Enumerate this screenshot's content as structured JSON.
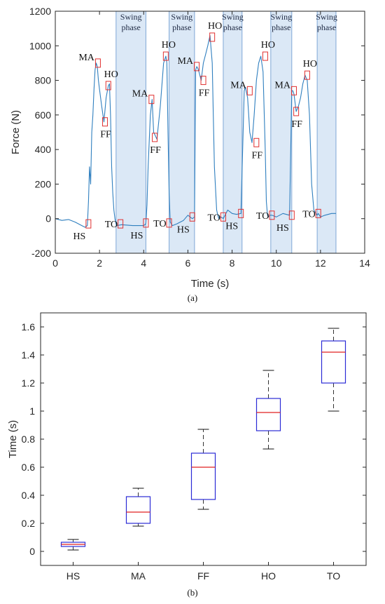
{
  "chart_data": [
    {
      "type": "line",
      "caption": "(a)",
      "xlabel": "Time (s)",
      "ylabel": "Force (N)",
      "xlim": [
        0,
        14
      ],
      "ylim": [
        -200,
        1200
      ],
      "xticks": [
        0,
        2,
        4,
        6,
        8,
        10,
        12,
        14
      ],
      "yticks": [
        -200,
        0,
        200,
        400,
        600,
        800,
        1000,
        1200
      ],
      "line_color": "#2f7fbf",
      "series": [
        {
          "x": [
            0,
            0.3,
            0.6,
            0.9,
            1.2,
            1.35,
            1.45,
            1.5,
            1.55,
            1.6,
            1.65,
            1.7,
            1.75,
            1.8,
            1.85,
            1.9,
            1.95,
            2.0,
            2.1,
            2.2,
            2.3,
            2.4,
            2.45,
            2.5,
            2.55,
            2.6,
            2.65,
            2.7,
            2.75,
            2.8,
            3.0,
            3.5,
            4.0,
            4.1,
            4.15,
            4.2,
            4.3,
            4.38,
            4.45,
            4.6,
            4.75,
            4.9,
            5.0,
            5.05,
            5.1,
            5.15,
            5.2,
            5.3,
            5.5,
            5.8,
            6.0,
            6.2,
            6.3,
            6.35,
            6.4,
            6.45,
            6.5,
            6.6,
            6.7,
            6.8,
            6.9,
            7.0,
            7.1,
            7.15,
            7.2,
            7.3,
            7.35,
            7.4,
            7.45,
            7.5,
            7.6,
            7.8,
            8.0,
            8.2,
            8.4,
            8.55,
            8.6,
            8.7,
            8.75,
            8.8,
            8.9,
            9.0,
            9.1,
            9.2,
            9.3,
            9.4,
            9.5,
            9.55,
            9.6,
            9.65,
            9.7,
            9.8,
            10.0,
            10.3,
            10.6,
            10.7,
            10.75,
            10.8,
            10.9,
            11.0,
            11.1,
            11.2,
            11.3,
            11.4,
            11.5,
            11.6,
            11.7,
            11.8,
            11.85,
            11.9,
            12.0,
            12.2,
            12.5,
            12.7
          ],
          "y": [
            0,
            -10,
            -5,
            -20,
            -40,
            -50,
            -40,
            100,
            300,
            200,
            500,
            600,
            750,
            860,
            900,
            880,
            800,
            750,
            650,
            560,
            700,
            770,
            780,
            600,
            300,
            150,
            50,
            0,
            -30,
            -40,
            -35,
            -40,
            -40,
            -30,
            80,
            300,
            600,
            690,
            500,
            460,
            650,
            900,
            940,
            900,
            500,
            150,
            -20,
            -40,
            -30,
            -10,
            20,
            0,
            10,
            860,
            880,
            870,
            850,
            800,
            900,
            950,
            1000,
            1060,
            900,
            600,
            300,
            50,
            20,
            0,
            10,
            10,
            0,
            50,
            30,
            25,
            30,
            740,
            760,
            700,
            600,
            500,
            440,
            600,
            800,
            900,
            940,
            850,
            400,
            100,
            20,
            10,
            20,
            20,
            10,
            30,
            20,
            740,
            740,
            720,
            620,
            650,
            700,
            780,
            830,
            800,
            600,
            200,
            50,
            30,
            20,
            30,
            10,
            20,
            30,
            30
          ]
        }
      ],
      "swing_phases": [
        [
          2.75,
          4.1
        ],
        [
          5.15,
          6.3
        ],
        [
          7.6,
          8.45
        ],
        [
          9.75,
          10.7
        ],
        [
          11.85,
          12.7
        ]
      ],
      "swing_label": "Swing phase",
      "annotations": [
        {
          "label": "MA",
          "x": 1.93,
          "y": 900
        },
        {
          "label": "HO",
          "x": 2.4,
          "y": 770
        },
        {
          "label": "FF",
          "x": 2.25,
          "y": 560
        },
        {
          "label": "HS",
          "x": 1.5,
          "y": -30
        },
        {
          "label": "TO",
          "x": 2.95,
          "y": -30
        },
        {
          "label": "MA",
          "x": 4.35,
          "y": 690
        },
        {
          "label": "FF",
          "x": 4.5,
          "y": 470
        },
        {
          "label": "HO",
          "x": 5.0,
          "y": 940
        },
        {
          "label": "HS",
          "x": 4.1,
          "y": -25
        },
        {
          "label": "TO",
          "x": 5.15,
          "y": -25
        },
        {
          "label": "MA",
          "x": 6.4,
          "y": 880
        },
        {
          "label": "FF",
          "x": 6.7,
          "y": 800
        },
        {
          "label": "HO",
          "x": 7.1,
          "y": 1050
        },
        {
          "label": "HS",
          "x": 6.2,
          "y": 10
        },
        {
          "label": "TO",
          "x": 7.6,
          "y": 10
        },
        {
          "label": "MA",
          "x": 8.8,
          "y": 740
        },
        {
          "label": "FF",
          "x": 9.1,
          "y": 440
        },
        {
          "label": "HO",
          "x": 9.5,
          "y": 940
        },
        {
          "label": "HS",
          "x": 8.4,
          "y": 30
        },
        {
          "label": "TO",
          "x": 9.8,
          "y": 20
        },
        {
          "label": "MA",
          "x": 10.8,
          "y": 740
        },
        {
          "label": "FF",
          "x": 10.9,
          "y": 620
        },
        {
          "label": "HO",
          "x": 11.4,
          "y": 830
        },
        {
          "label": "HS",
          "x": 10.7,
          "y": 20
        },
        {
          "label": "TO",
          "x": 11.9,
          "y": 30
        }
      ]
    },
    {
      "type": "box",
      "caption": "(b)",
      "ylabel": "Time (s)",
      "ylim": [
        -0.1,
        1.7
      ],
      "yticks": [
        0,
        0.2,
        0.4,
        0.6,
        0.8,
        1,
        1.2,
        1.4,
        1.6
      ],
      "ytick_labels": [
        "0",
        "0.2",
        "0.4",
        "0.6",
        "0.8",
        "1",
        "1.2",
        "1.4",
        "1.6"
      ],
      "categories": [
        "HS",
        "MA",
        "FF",
        "HO",
        "TO"
      ],
      "box_color": "#2b2bd6",
      "median_color": "#e02020",
      "boxes": [
        {
          "min": 0.01,
          "q1": 0.035,
          "median": 0.05,
          "q3": 0.065,
          "max": 0.085
        },
        {
          "min": 0.18,
          "q1": 0.2,
          "median": 0.28,
          "q3": 0.39,
          "max": 0.45
        },
        {
          "min": 0.3,
          "q1": 0.37,
          "median": 0.6,
          "q3": 0.7,
          "max": 0.87
        },
        {
          "min": 0.73,
          "q1": 0.86,
          "median": 0.99,
          "q3": 1.09,
          "max": 1.29
        },
        {
          "min": 1.0,
          "q1": 1.2,
          "median": 1.42,
          "q3": 1.5,
          "max": 1.59
        }
      ]
    }
  ]
}
